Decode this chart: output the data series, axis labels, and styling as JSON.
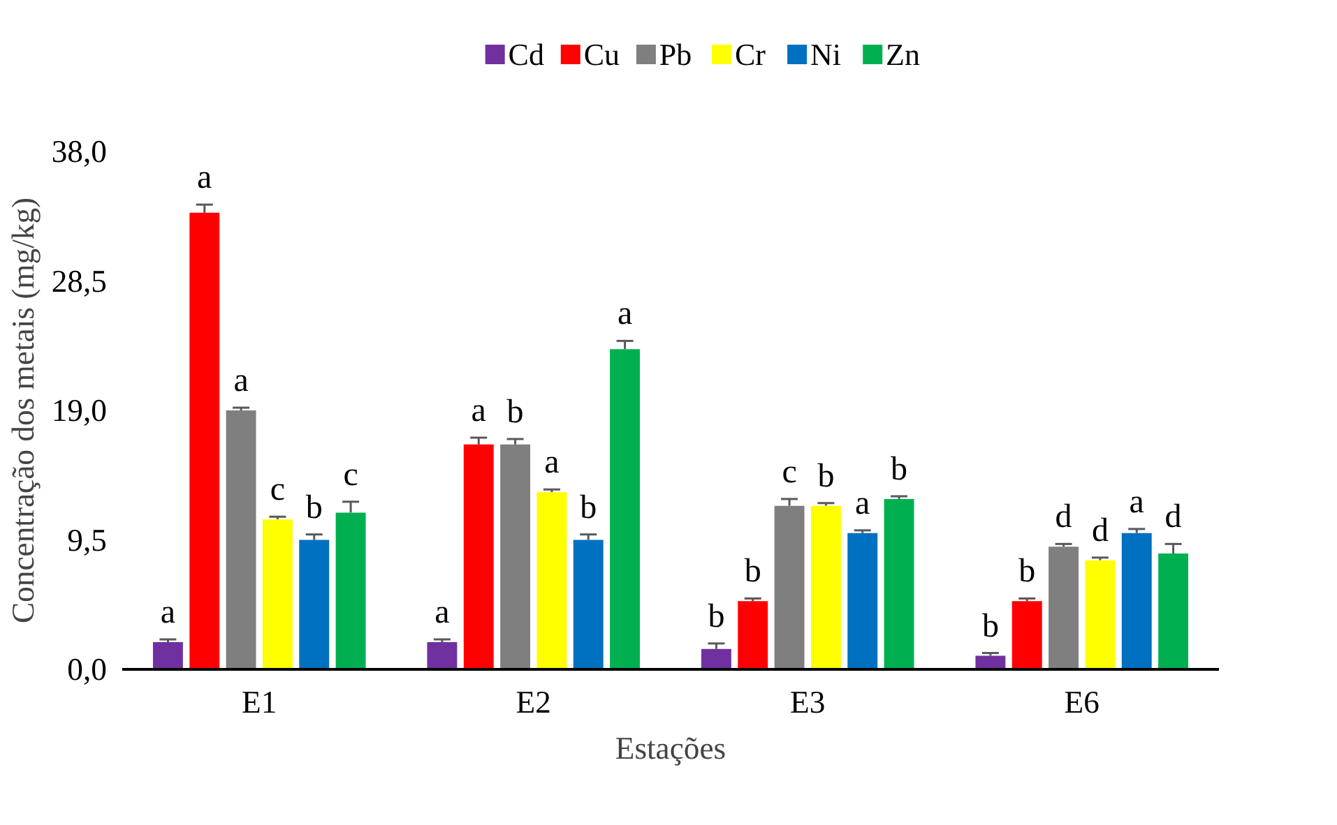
{
  "chart_data": {
    "type": "bar",
    "xlabel": "Estações",
    "ylabel": "Concentração dos metais (mg/kg)",
    "categories": [
      "E1",
      "E2",
      "E3",
      "E6"
    ],
    "ylim": [
      0,
      38
    ],
    "yticks": [
      {
        "value": 0,
        "label": "0,0"
      },
      {
        "value": 9.5,
        "label": "9,5"
      },
      {
        "value": 19,
        "label": "19,0"
      },
      {
        "value": 28.5,
        "label": "28,5"
      },
      {
        "value": 38,
        "label": "38,0"
      }
    ],
    "grid": false,
    "legend": "top",
    "series": [
      {
        "name": "Cd",
        "color": "#7030a0",
        "values": [
          2,
          2,
          1.5,
          1
        ],
        "errors": [
          0.2,
          0.2,
          0.4,
          0.2
        ],
        "value_labels": [
          "a",
          "a",
          "b",
          "b"
        ]
      },
      {
        "name": "Cu",
        "color": "#ff0000",
        "values": [
          33.5,
          16.5,
          5,
          5
        ],
        "errors": [
          0.6,
          0.5,
          0.2,
          0.2
        ],
        "value_labels": [
          "a",
          "a",
          "b",
          "b"
        ]
      },
      {
        "name": "Pb",
        "color": "#7f7f7f",
        "values": [
          19,
          16.5,
          12,
          9
        ],
        "errors": [
          0.2,
          0.4,
          0.5,
          0.2
        ],
        "value_labels": [
          "a",
          "b",
          "c",
          "d"
        ]
      },
      {
        "name": "Cr",
        "color": "#ffff00",
        "values": [
          11,
          13,
          12,
          8
        ],
        "errors": [
          0.2,
          0.2,
          0.2,
          0.2
        ],
        "value_labels": [
          "c",
          "a",
          "b",
          "d"
        ]
      },
      {
        "name": "Ni",
        "color": "#0070c0",
        "values": [
          9.5,
          9.5,
          10,
          10
        ],
        "errors": [
          0.4,
          0.4,
          0.2,
          0.3
        ],
        "value_labels": [
          "b",
          "b",
          "a",
          "a"
        ]
      },
      {
        "name": "Zn",
        "color": "#00b050",
        "values": [
          11.5,
          23.5,
          12.5,
          8.5
        ],
        "errors": [
          0.8,
          0.6,
          0.2,
          0.7
        ],
        "value_labels": [
          "c",
          "a",
          "b",
          "d"
        ]
      }
    ]
  }
}
